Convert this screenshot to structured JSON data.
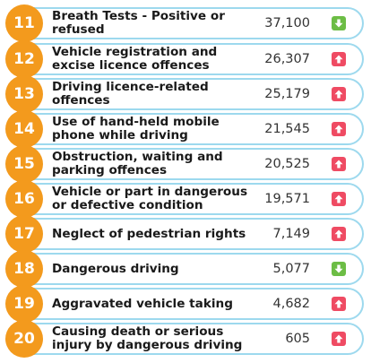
{
  "rows": [
    {
      "rank": "11",
      "label": "Breath Tests - Positive or refused",
      "value": "37,100",
      "trend": "down",
      "trend_icon": "arrow-down-icon"
    },
    {
      "rank": "12",
      "label": "Vehicle registration and excise licence offences",
      "value": "26,307",
      "trend": "up",
      "trend_icon": "arrow-up-icon"
    },
    {
      "rank": "13",
      "label": "Driving licence-related offences",
      "value": "25,179",
      "trend": "up",
      "trend_icon": "arrow-up-icon"
    },
    {
      "rank": "14",
      "label": "Use of hand-held mobile phone while driving",
      "value": "21,545",
      "trend": "up",
      "trend_icon": "arrow-up-icon"
    },
    {
      "rank": "15",
      "label": "Obstruction, waiting and parking offences",
      "value": "20,525",
      "trend": "up",
      "trend_icon": "arrow-up-icon"
    },
    {
      "rank": "16",
      "label": "Vehicle or part in dangerous or defective condition",
      "value": "19,571",
      "trend": "up",
      "trend_icon": "arrow-up-icon"
    },
    {
      "rank": "17",
      "label": "Neglect of pedestrian rights",
      "value": "7,149",
      "trend": "up",
      "trend_icon": "arrow-up-icon"
    },
    {
      "rank": "18",
      "label": "Dangerous driving",
      "value": "5,077",
      "trend": "down",
      "trend_icon": "arrow-down-icon"
    },
    {
      "rank": "19",
      "label": "Aggravated vehicle taking",
      "value": "4,682",
      "trend": "up",
      "trend_icon": "arrow-up-icon"
    },
    {
      "rank": "20",
      "label": "Causing death or serious injury by dangerous driving",
      "value": "605",
      "trend": "up",
      "trend_icon": "arrow-up-icon"
    }
  ],
  "colors": {
    "badge": "#f39a1d",
    "row_border": "#9dd9ee",
    "trend_up": "#ef4b63",
    "trend_down": "#6cbd45"
  }
}
